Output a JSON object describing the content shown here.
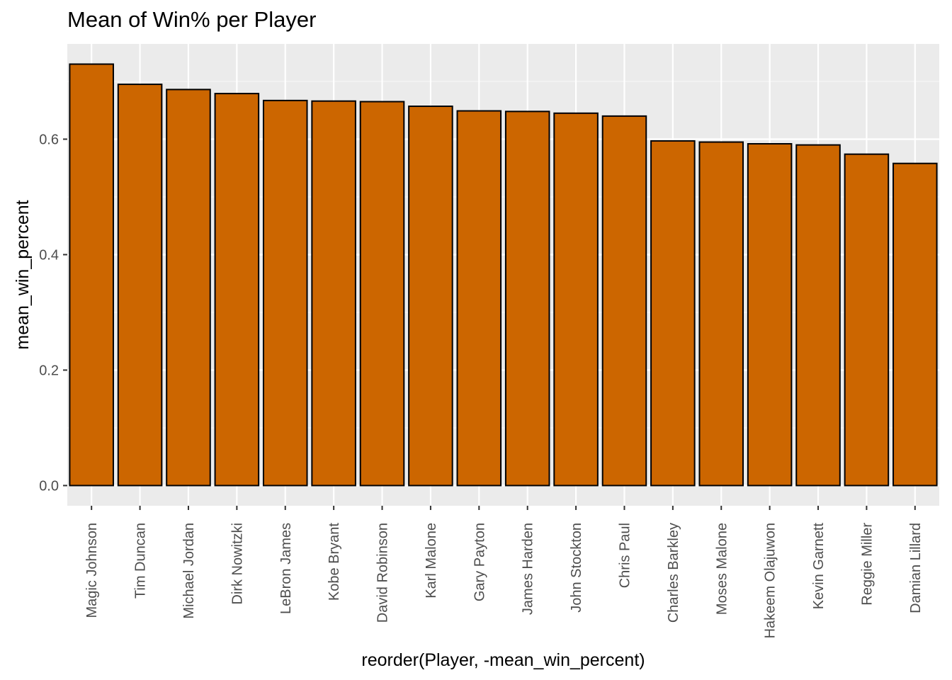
{
  "chart_data": {
    "type": "bar",
    "title": "Mean of Win% per Player",
    "xlabel": "reorder(Player, -mean_win_percent)",
    "ylabel": "mean_win_percent",
    "ylim": [
      -0.035,
      0.765
    ],
    "yticks": [
      "0.0",
      "0.2",
      "0.4",
      "0.6"
    ],
    "ytick_values": [
      0.0,
      0.2,
      0.4,
      0.6
    ],
    "grid": true,
    "legend": "none",
    "categories": [
      "Magic Johnson",
      "Tim Duncan",
      "Michael Jordan",
      "Dirk Nowitzki",
      "LeBron James",
      "Kobe Bryant",
      "David Robinson",
      "Karl Malone",
      "Gary Payton",
      "James Harden",
      "John Stockton",
      "Chris Paul",
      "Charles Barkley",
      "Moses Malone",
      "Hakeem Olajuwon",
      "Kevin Garnett",
      "Reggie Miller",
      "Damian Lillard"
    ],
    "values": [
      0.73,
      0.695,
      0.686,
      0.679,
      0.667,
      0.666,
      0.665,
      0.657,
      0.649,
      0.648,
      0.645,
      0.64,
      0.597,
      0.595,
      0.592,
      0.59,
      0.574,
      0.558
    ],
    "colors": {
      "bar_fill": "#CC6600",
      "bar_stroke": "#000000",
      "panel_bg": "#EBEBEB",
      "grid_major": "#FFFFFF",
      "grid_minor": "#F5F5F5"
    }
  }
}
